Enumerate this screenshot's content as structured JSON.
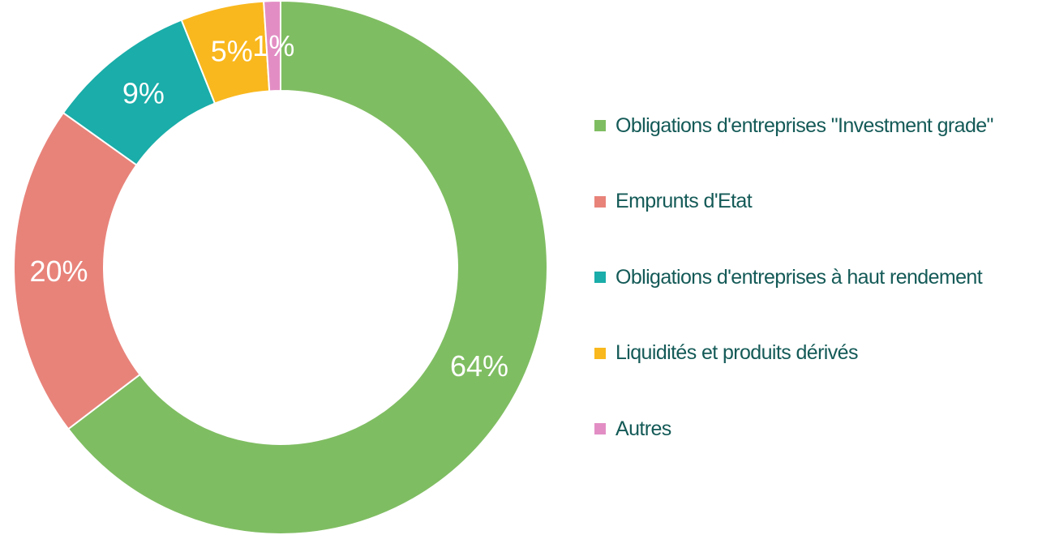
{
  "chart_data": {
    "type": "pie",
    "variant": "donut",
    "legend_position": "right",
    "categories": [
      "Obligations d'entreprises \"Investment grade\"",
      "Emprunts d'Etat",
      "Obligations d'entreprises à haut rendement",
      "Liquidités et produits dérivés",
      "Autres"
    ],
    "values": [
      64,
      20,
      9,
      5,
      1
    ],
    "value_labels": [
      "64%",
      "20%",
      "9%",
      "5%",
      "1%"
    ],
    "colors": [
      "#7fbd62",
      "#e8837a",
      "#1aada9",
      "#f9b81e",
      "#e28ec4"
    ],
    "label_color_outside": "#145a57",
    "legend_text_color": "#145a57"
  }
}
